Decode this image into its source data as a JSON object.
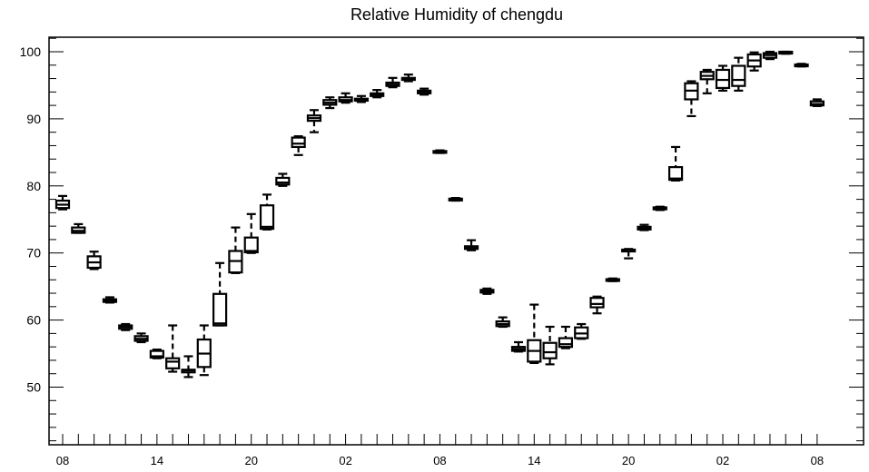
{
  "chart_data": {
    "type": "box",
    "title": "Relative Humidity of chengdu",
    "xlabel": "",
    "ylabel": "",
    "ylim": [
      41.3,
      103
    ],
    "yticks": [
      50,
      60,
      70,
      80,
      90,
      100
    ],
    "x_tick_labels": [
      "08",
      "14",
      "20",
      "02",
      "08",
      "14",
      "20",
      "02",
      "08"
    ],
    "x_tick_hours": [
      0,
      6,
      12,
      18,
      24,
      30,
      36,
      42,
      48
    ],
    "grid": false,
    "boxes": [
      {
        "hour": 0,
        "min": 76.5,
        "q1": 76.7,
        "median": 77.2,
        "q3": 77.8,
        "max": 78.5
      },
      {
        "hour": 1,
        "min": 73.0,
        "q1": 73.0,
        "median": 73.3,
        "q3": 73.8,
        "max": 74.3
      },
      {
        "hour": 2,
        "min": 67.6,
        "q1": 67.8,
        "median": 68.6,
        "q3": 69.5,
        "max": 70.2
      },
      {
        "hour": 3,
        "min": 62.6,
        "q1": 62.7,
        "median": 62.9,
        "q3": 63.1,
        "max": 63.4
      },
      {
        "hour": 4,
        "min": 58.5,
        "q1": 58.7,
        "median": 59.0,
        "q3": 59.2,
        "max": 59.4
      },
      {
        "hour": 5,
        "min": 56.7,
        "q1": 56.9,
        "median": 57.2,
        "q3": 57.6,
        "max": 58.0
      },
      {
        "hour": 6,
        "min": 54.3,
        "q1": 54.4,
        "median": 54.6,
        "q3": 55.4,
        "max": 55.6
      },
      {
        "hour": 7,
        "min": 52.3,
        "q1": 52.8,
        "median": 53.8,
        "q3": 54.3,
        "max": 59.2
      },
      {
        "hour": 8,
        "min": 51.5,
        "q1": 52.2,
        "median": 52.5,
        "q3": 52.6,
        "max": 54.6
      },
      {
        "hour": 9,
        "min": 51.8,
        "q1": 53.0,
        "median": 55.0,
        "q3": 57.1,
        "max": 59.2
      },
      {
        "hour": 10,
        "min": 59.2,
        "q1": 59.2,
        "median": 59.5,
        "q3": 63.9,
        "max": 68.5
      },
      {
        "hour": 11,
        "min": 67.0,
        "q1": 67.1,
        "median": 68.8,
        "q3": 70.3,
        "max": 73.8
      },
      {
        "hour": 12,
        "min": 70.0,
        "q1": 70.1,
        "median": 70.3,
        "q3": 72.3,
        "max": 75.8
      },
      {
        "hour": 13,
        "min": 73.5,
        "q1": 73.6,
        "median": 73.9,
        "q3": 77.1,
        "max": 78.7
      },
      {
        "hour": 14,
        "min": 80.0,
        "q1": 80.2,
        "median": 80.5,
        "q3": 81.2,
        "max": 81.8
      },
      {
        "hour": 15,
        "min": 84.6,
        "q1": 85.8,
        "median": 86.3,
        "q3": 87.2,
        "max": 87.4
      },
      {
        "hour": 16,
        "min": 88.0,
        "q1": 89.7,
        "median": 90.1,
        "q3": 90.5,
        "max": 91.3
      },
      {
        "hour": 17,
        "min": 91.6,
        "q1": 92.1,
        "median": 92.4,
        "q3": 92.8,
        "max": 93.2
      },
      {
        "hour": 18,
        "min": 92.4,
        "q1": 92.6,
        "median": 92.8,
        "q3": 93.2,
        "max": 93.8
      },
      {
        "hour": 19,
        "min": 92.5,
        "q1": 92.7,
        "median": 92.9,
        "q3": 93.0,
        "max": 93.4
      },
      {
        "hour": 20,
        "min": 93.2,
        "q1": 93.4,
        "median": 93.6,
        "q3": 93.8,
        "max": 94.3
      },
      {
        "hour": 21,
        "min": 94.7,
        "q1": 94.9,
        "median": 95.1,
        "q3": 95.4,
        "max": 96.1
      },
      {
        "hour": 22,
        "min": 95.6,
        "q1": 95.8,
        "median": 96.0,
        "q3": 96.1,
        "max": 96.6
      },
      {
        "hour": 23,
        "min": 93.6,
        "q1": 93.8,
        "median": 94.0,
        "q3": 94.2,
        "max": 94.5
      },
      {
        "hour": 24,
        "min": 84.9,
        "q1": 85.0,
        "median": 85.1,
        "q3": 85.2,
        "max": 85.3
      },
      {
        "hour": 25,
        "min": 77.8,
        "q1": 77.9,
        "median": 78.0,
        "q3": 78.1,
        "max": 78.2
      },
      {
        "hour": 26,
        "min": 70.4,
        "q1": 70.6,
        "median": 70.8,
        "q3": 71.0,
        "max": 71.9
      },
      {
        "hour": 27,
        "min": 63.9,
        "q1": 64.1,
        "median": 64.3,
        "q3": 64.5,
        "max": 64.7
      },
      {
        "hour": 28,
        "min": 59.0,
        "q1": 59.1,
        "median": 59.4,
        "q3": 59.8,
        "max": 60.4
      },
      {
        "hour": 29,
        "min": 55.3,
        "q1": 55.4,
        "median": 55.7,
        "q3": 56.0,
        "max": 56.7
      },
      {
        "hour": 30,
        "min": 53.6,
        "q1": 53.8,
        "median": 55.4,
        "q3": 57.0,
        "max": 62.3
      },
      {
        "hour": 31,
        "min": 53.4,
        "q1": 54.3,
        "median": 55.2,
        "q3": 56.6,
        "max": 59.0
      },
      {
        "hour": 32,
        "min": 55.8,
        "q1": 56.0,
        "median": 56.4,
        "q3": 57.3,
        "max": 59.0
      },
      {
        "hour": 33,
        "min": 57.2,
        "q1": 57.3,
        "median": 58.0,
        "q3": 58.9,
        "max": 59.4
      },
      {
        "hour": 34,
        "min": 61.0,
        "q1": 61.9,
        "median": 62.4,
        "q3": 63.3,
        "max": 63.5
      },
      {
        "hour": 35,
        "min": 65.8,
        "q1": 65.9,
        "median": 66.0,
        "q3": 66.1,
        "max": 66.2
      },
      {
        "hour": 36,
        "min": 69.2,
        "q1": 70.3,
        "median": 70.4,
        "q3": 70.5,
        "max": 70.6
      },
      {
        "hour": 37,
        "min": 73.4,
        "q1": 73.5,
        "median": 73.7,
        "q3": 73.9,
        "max": 74.2
      },
      {
        "hour": 38,
        "min": 76.4,
        "q1": 76.5,
        "median": 76.6,
        "q3": 76.8,
        "max": 76.9
      },
      {
        "hour": 39,
        "min": 80.8,
        "q1": 80.9,
        "median": 81.1,
        "q3": 82.8,
        "max": 85.8
      },
      {
        "hour": 40,
        "min": 90.4,
        "q1": 92.9,
        "median": 94.2,
        "q3": 95.3,
        "max": 95.6
      },
      {
        "hour": 41,
        "min": 93.8,
        "q1": 95.9,
        "median": 96.4,
        "q3": 97.0,
        "max": 97.3
      },
      {
        "hour": 42,
        "min": 94.2,
        "q1": 94.6,
        "median": 95.8,
        "q3": 97.3,
        "max": 97.9
      },
      {
        "hour": 43,
        "min": 94.2,
        "q1": 94.9,
        "median": 95.8,
        "q3": 97.9,
        "max": 99.1
      },
      {
        "hour": 44,
        "min": 97.2,
        "q1": 97.8,
        "median": 98.7,
        "q3": 99.6,
        "max": 99.9
      },
      {
        "hour": 45,
        "min": 98.9,
        "q1": 99.1,
        "median": 99.5,
        "q3": 99.8,
        "max": 100.0
      },
      {
        "hour": 46,
        "min": 99.7,
        "q1": 99.8,
        "median": 99.9,
        "q3": 100.0,
        "max": 100.0
      },
      {
        "hour": 47,
        "min": 97.8,
        "q1": 97.9,
        "median": 98.0,
        "q3": 98.1,
        "max": 98.2
      },
      {
        "hour": 48,
        "min": 91.9,
        "q1": 92.0,
        "median": 92.2,
        "q3": 92.6,
        "max": 92.9
      }
    ]
  }
}
